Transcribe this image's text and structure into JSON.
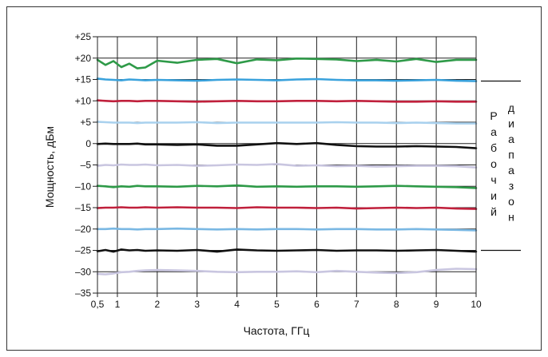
{
  "chart_data": {
    "type": "line",
    "title": "",
    "xlabel": "Частота, ГГц",
    "ylabel": "Мощность, дБм",
    "xlim": [
      0.5,
      10
    ],
    "ylim": [
      -35,
      25
    ],
    "x_ticks": [
      0.5,
      1,
      2,
      3,
      4,
      5,
      6,
      7,
      8,
      9,
      10
    ],
    "x_tick_labels": [
      "0,5",
      "1",
      "2",
      "3",
      "4",
      "5",
      "6",
      "7",
      "8",
      "9",
      "10"
    ],
    "y_ticks": [
      25,
      20,
      15,
      10,
      5,
      0,
      -5,
      -10,
      -15,
      -20,
      -25,
      -30,
      -35
    ],
    "y_tick_labels": [
      "+25",
      "+20",
      "+15",
      "+10",
      "+5",
      "0",
      "–5",
      "–10",
      "–15",
      "–20",
      "–25",
      "–30",
      "–35"
    ],
    "grid": true,
    "x": [
      0.5,
      0.7,
      0.9,
      1.1,
      1.3,
      1.5,
      1.7,
      2.0,
      2.5,
      3.0,
      3.5,
      4.0,
      4.5,
      5.0,
      5.5,
      6.0,
      6.5,
      7.0,
      7.5,
      8.0,
      8.5,
      9.0,
      9.5,
      10.0
    ],
    "series": [
      {
        "color": "#2e9a48",
        "values": [
          19.6,
          18.4,
          19.3,
          17.9,
          18.7,
          17.6,
          17.8,
          19.4,
          18.9,
          19.6,
          19.8,
          18.8,
          19.7,
          19.5,
          19.9,
          19.8,
          19.7,
          19.3,
          19.6,
          19.2,
          19.8,
          19.1,
          19.6,
          19.6
        ]
      },
      {
        "color": "#3aa2dc",
        "values": [
          15.2,
          15.0,
          14.9,
          14.8,
          15.0,
          14.9,
          14.8,
          14.9,
          14.8,
          14.7,
          14.9,
          15.0,
          14.9,
          14.8,
          15.0,
          15.1,
          14.9,
          14.8,
          14.8,
          14.7,
          14.8,
          14.9,
          14.7,
          14.6
        ]
      },
      {
        "color": "#c0203c",
        "values": [
          10.1,
          10.0,
          9.9,
          10.0,
          10.0,
          9.9,
          10.0,
          10.0,
          9.9,
          9.8,
          9.9,
          10.0,
          9.9,
          9.9,
          10.0,
          10.0,
          9.9,
          10.0,
          9.9,
          9.8,
          9.8,
          9.9,
          9.8,
          9.8
        ]
      },
      {
        "color": "#a9d1ee",
        "values": [
          5.1,
          5.0,
          4.9,
          4.9,
          4.9,
          4.8,
          4.9,
          4.9,
          4.9,
          5.0,
          4.8,
          4.9,
          4.9,
          4.9,
          4.9,
          4.9,
          5.0,
          4.9,
          4.9,
          4.8,
          4.9,
          4.8,
          4.7,
          4.7
        ]
      },
      {
        "color": "#111111",
        "values": [
          -0.1,
          0.0,
          -0.1,
          -0.1,
          -0.1,
          0.0,
          -0.2,
          -0.2,
          -0.3,
          -0.2,
          -0.5,
          -0.5,
          -0.2,
          0.1,
          -0.1,
          0.1,
          -0.3,
          -0.6,
          -0.7,
          -0.7,
          -0.6,
          -0.7,
          -0.8,
          -1.1
        ]
      },
      {
        "color": "#c9c6e0",
        "values": [
          -5.2,
          -5.0,
          -5.1,
          -4.9,
          -5.0,
          -5.0,
          -4.9,
          -5.1,
          -5.0,
          -5.2,
          -5.1,
          -4.9,
          -5.0,
          -4.8,
          -5.2,
          -5.1,
          -5.3,
          -5.2,
          -5.4,
          -5.3,
          -5.2,
          -5.2,
          -5.3,
          -5.6
        ]
      },
      {
        "color": "#2e9a48",
        "values": [
          -9.9,
          -10.0,
          -10.2,
          -10.0,
          -10.1,
          -9.9,
          -10.0,
          -10.0,
          -10.1,
          -9.9,
          -10.0,
          -9.8,
          -10.1,
          -10.0,
          -10.1,
          -10.0,
          -10.0,
          -10.1,
          -10.0,
          -9.9,
          -10.0,
          -10.1,
          -10.2,
          -10.4
        ]
      },
      {
        "color": "#c0203c",
        "values": [
          -15.1,
          -15.0,
          -15.0,
          -14.9,
          -15.0,
          -15.0,
          -14.9,
          -15.0,
          -14.9,
          -15.0,
          -15.0,
          -15.1,
          -14.9,
          -15.0,
          -15.0,
          -15.1,
          -15.0,
          -15.2,
          -15.1,
          -15.0,
          -15.1,
          -15.0,
          -15.2,
          -15.3
        ]
      },
      {
        "color": "#7ab8e3",
        "values": [
          -20.0,
          -20.0,
          -19.9,
          -20.0,
          -20.0,
          -20.1,
          -20.0,
          -20.0,
          -19.9,
          -20.0,
          -20.1,
          -20.0,
          -20.1,
          -20.0,
          -20.0,
          -20.1,
          -20.0,
          -20.0,
          -20.1,
          -20.1,
          -20.0,
          -20.1,
          -20.2,
          -20.3
        ]
      },
      {
        "color": "#111111",
        "values": [
          -25.2,
          -24.9,
          -25.3,
          -24.8,
          -25.0,
          -24.9,
          -25.1,
          -25.0,
          -25.1,
          -24.9,
          -25.3,
          -24.8,
          -25.0,
          -25.1,
          -25.0,
          -24.9,
          -25.1,
          -25.0,
          -25.0,
          -25.1,
          -25.0,
          -24.9,
          -25.1,
          -25.3
        ]
      },
      {
        "color": "#c9c6e0",
        "values": [
          -30.5,
          -30.6,
          -30.4,
          -30.1,
          -30.0,
          -29.8,
          -29.7,
          -29.6,
          -29.7,
          -29.8,
          -30.0,
          -30.1,
          -30.0,
          -30.0,
          -29.9,
          -30.1,
          -29.8,
          -30.0,
          -30.2,
          -30.3,
          -30.1,
          -29.6,
          -29.3,
          -29.4
        ]
      }
    ],
    "range_label_words": [
      "Рабочий",
      "диапазон"
    ],
    "range_bounds": [
      15,
      -25
    ]
  }
}
